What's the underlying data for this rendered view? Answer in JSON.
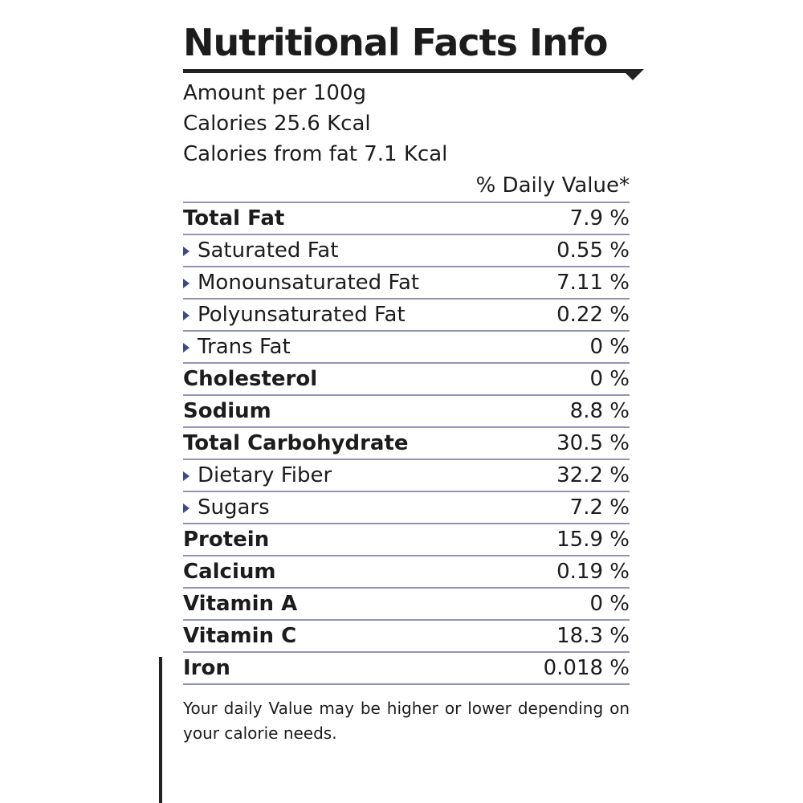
{
  "label": {
    "title": "Nutritional Facts Info",
    "intro": [
      "Amount per 100g",
      "Calories 25.6 Kcal",
      "Calories from fat 7.1 Kcal"
    ],
    "column_header": "% Daily Value*",
    "rows": [
      {
        "name": "Total Fat",
        "value": "7.9 %",
        "subrows": [
          {
            "name": "Saturated Fat",
            "value": "0.55 %"
          },
          {
            "name": "Monounsaturated Fat",
            "value": "7.11 %"
          },
          {
            "name": "Polyunsaturated Fat",
            "value": "0.22 %"
          },
          {
            "name": "Trans Fat",
            "value": "0 %"
          }
        ]
      },
      {
        "name": "Cholesterol",
        "value": "0 %"
      },
      {
        "name": "Sodium",
        "value": "8.8 %"
      },
      {
        "name": "Total Carbohydrate",
        "value": "30.5 %",
        "subrows": [
          {
            "name": "Dietary Fiber",
            "value": "32.2 %"
          },
          {
            "name": "Sugars",
            "value": "7.2 %"
          }
        ]
      },
      {
        "name": "Protein",
        "value": "15.9 %"
      },
      {
        "name": "Calcium",
        "value": "0.19 %"
      },
      {
        "name": "Vitamin A",
        "value": "0 %"
      },
      {
        "name": "Vitamin C",
        "value": "18.3 %"
      },
      {
        "name": "Iron",
        "value": "0.018 %"
      }
    ],
    "footnote": "Your daily Value may be higher or lower depending on your calorie needs."
  }
}
